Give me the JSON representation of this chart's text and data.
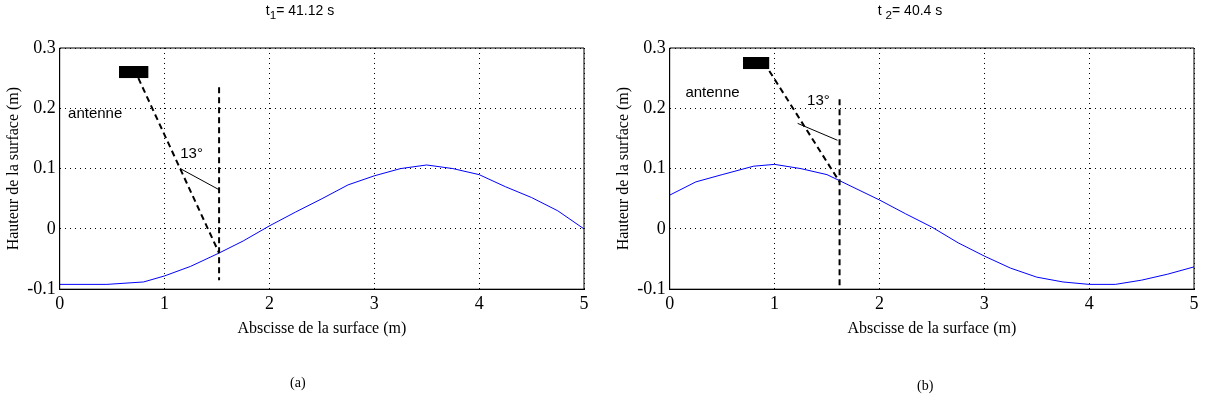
{
  "chart_data": [
    {
      "type": "line",
      "title": "t$_{1}$= 41.12 s",
      "xlabel": "Abscisse de la surface (m)",
      "ylabel": "Hauteur de la surface (m)",
      "annotations": [
        "antenne",
        "13°",
        "(a)"
      ],
      "x": [
        0,
        0.45,
        0.8,
        1.0,
        1.25,
        1.52,
        1.75,
        2.0,
        2.25,
        2.5,
        2.75,
        3.0,
        3.25,
        3.5,
        3.75,
        4.0,
        4.25,
        4.5,
        4.75,
        5.0
      ],
      "series": [
        {
          "color": "#000000",
          "x": [
            0.75,
            1.52
          ],
          "values": [
            0.25,
            -0.04
          ],
          "line_style": "dashed"
        },
        {
          "color": "#000000",
          "x": [
            1.52,
            1.52
          ],
          "values": [
            0.235,
            -0.085
          ],
          "line_style": "dashed"
        },
        {
          "color": "#000000",
          "x": [
            1.15,
            1.52
          ],
          "values": [
            0.1,
            0.065
          ]
        },
        {
          "color": "#0000ff",
          "values": [
            -0.092,
            -0.092,
            -0.088,
            -0.078,
            -0.062,
            -0.04,
            -0.02,
            0.005,
            0.028,
            0.05,
            0.073,
            0.088,
            0.1,
            0.106,
            0.1,
            0.09,
            0.07,
            0.052,
            0.03,
            0.0
          ]
        }
      ],
      "xlim": [
        0,
        5
      ],
      "ylim": [
        -0.1,
        0.3
      ],
      "xticks": [
        0,
        1,
        2,
        3,
        4,
        5
      ],
      "yticks": [
        -0.1,
        0,
        0.1,
        0.2,
        0.3
      ],
      "grid": true,
      "legend": false,
      "marker": "none",
      "line_style": "solid"
    },
    {
      "type": "line",
      "title": "t $_{2}$= 40.4 s",
      "xlabel": "Abscisse de la surface (m)",
      "ylabel": "Hauteur de la surface (m)",
      "annotations": [
        "antenne",
        "13°",
        "(b)"
      ],
      "x": [
        0,
        0.25,
        0.5,
        0.8,
        1.0,
        1.25,
        1.5,
        1.62,
        2.0,
        2.25,
        2.5,
        2.75,
        3.0,
        3.25,
        3.5,
        3.75,
        4.0,
        4.25,
        4.5,
        4.75,
        5.0
      ],
      "series": [
        {
          "color": "#000000",
          "x": [
            0.95,
            1.62
          ],
          "values": [
            0.262,
            0.078
          ],
          "line_style": "dashed"
        },
        {
          "color": "#000000",
          "x": [
            1.62,
            1.62
          ],
          "values": [
            0.215,
            -0.1
          ],
          "line_style": "dashed"
        },
        {
          "color": "#000000",
          "x": [
            1.22,
            1.6
          ],
          "values": [
            0.175,
            0.147
          ]
        },
        {
          "color": "#0000ff",
          "values": [
            0.056,
            0.078,
            0.09,
            0.104,
            0.107,
            0.1,
            0.09,
            0.08,
            0.048,
            0.025,
            0.003,
            -0.023,
            -0.045,
            -0.065,
            -0.08,
            -0.088,
            -0.092,
            -0.092,
            -0.085,
            -0.075,
            -0.063
          ]
        }
      ],
      "xlim": [
        0,
        5
      ],
      "ylim": [
        -0.1,
        0.3
      ],
      "xticks": [
        0,
        1,
        2,
        3,
        4,
        5
      ],
      "yticks": [
        -0.1,
        0,
        0.1,
        0.2,
        0.3
      ],
      "grid": true,
      "legend": false,
      "marker": "none",
      "line_style": "solid"
    }
  ]
}
